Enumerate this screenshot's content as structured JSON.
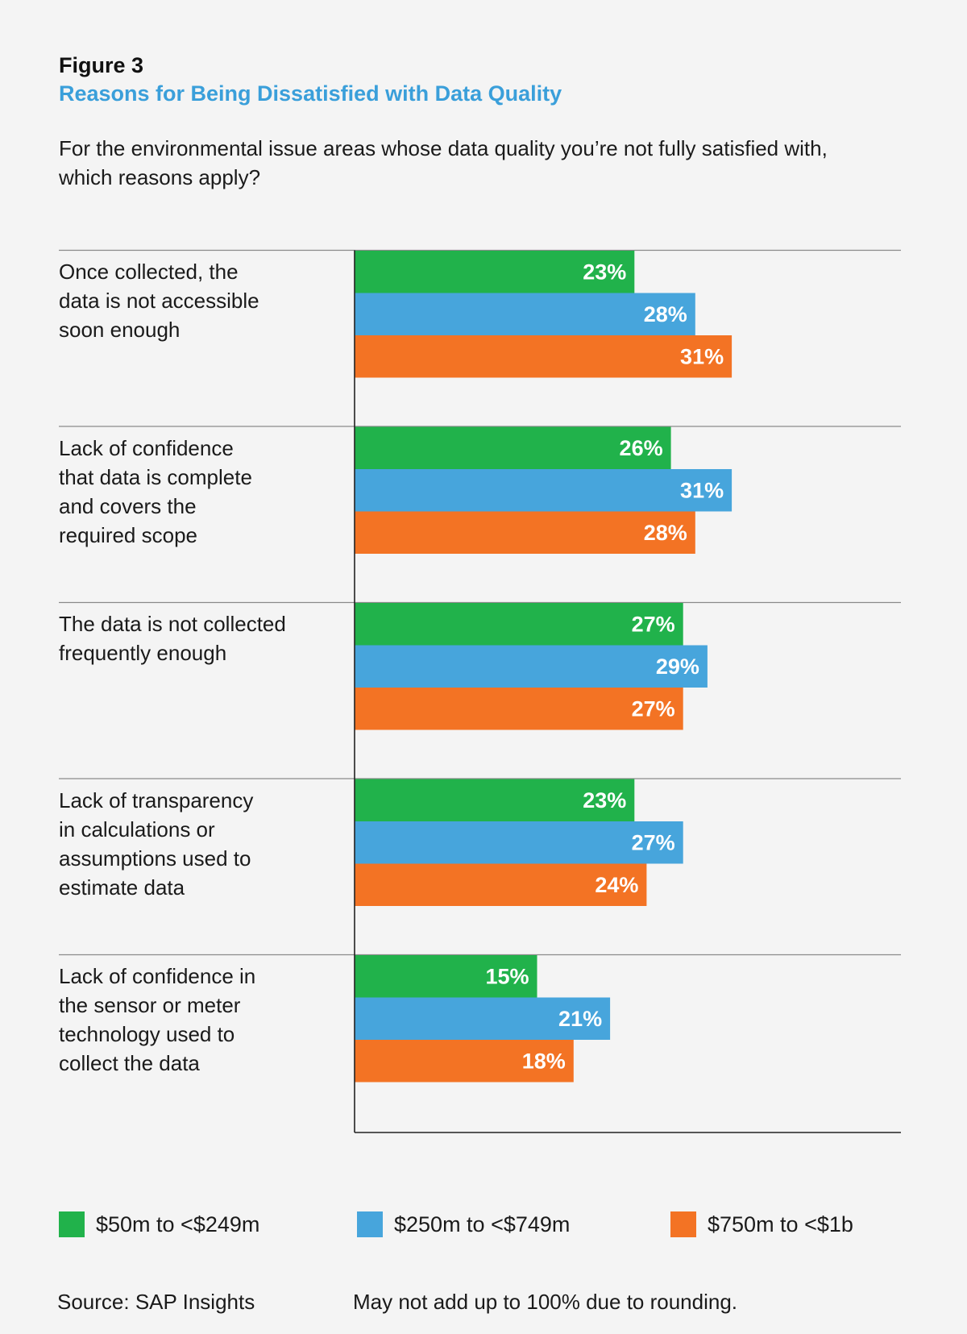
{
  "header": {
    "figure_label": "Figure 3",
    "title": "Reasons for Being Dissatisfied with Data Quality",
    "question": "For the environmental issue areas whose data quality you’re not fully satisfied with, which reasons apply?"
  },
  "colors": {
    "background": "#f4f4f4",
    "title_blue": "#3a9fda",
    "series_green": "#21b24b",
    "series_blue": "#47a5dc",
    "series_orange": "#f37324"
  },
  "chart_data": {
    "type": "bar",
    "orientation": "horizontal",
    "unit": "%",
    "categories": [
      [
        "Once collected, the",
        "data is not accessible",
        "soon enough"
      ],
      [
        "Lack of confidence",
        "that data is complete",
        "and covers the",
        "required scope"
      ],
      [
        "The data is not collected",
        "frequently enough"
      ],
      [
        "Lack of transparency",
        "in calculations or",
        "assumptions used to",
        "estimate data"
      ],
      [
        "Lack of confidence in",
        "the sensor or meter",
        "technology used to",
        "collect the data"
      ]
    ],
    "series": [
      {
        "name": "$50m to <$249m",
        "color": "#21b24b",
        "values": [
          23,
          26,
          27,
          23,
          15
        ]
      },
      {
        "name": "$250m to <$749m",
        "color": "#47a5dc",
        "values": [
          28,
          31,
          29,
          27,
          21
        ]
      },
      {
        "name": "$750m to <$1b",
        "color": "#f37324",
        "values": [
          31,
          28,
          27,
          24,
          18
        ]
      }
    ],
    "value_labels": [
      [
        "23%",
        "26%",
        "27%",
        "23%",
        "15%"
      ],
      [
        "28%",
        "31%",
        "29%",
        "27%",
        "21%"
      ],
      [
        "31%",
        "28%",
        "27%",
        "24%",
        "18%"
      ]
    ],
    "xlim": [
      0,
      45
    ],
    "legend_position": "bottom"
  },
  "legend": [
    {
      "label": "$50m to <$249m",
      "color": "#21b24b"
    },
    {
      "label": "$250m to <$749m",
      "color": "#47a5dc"
    },
    {
      "label": "$750m to <$1b",
      "color": "#f37324"
    }
  ],
  "footer": {
    "source": "Source: SAP Insights",
    "note": "May not add up to 100% due to rounding."
  }
}
